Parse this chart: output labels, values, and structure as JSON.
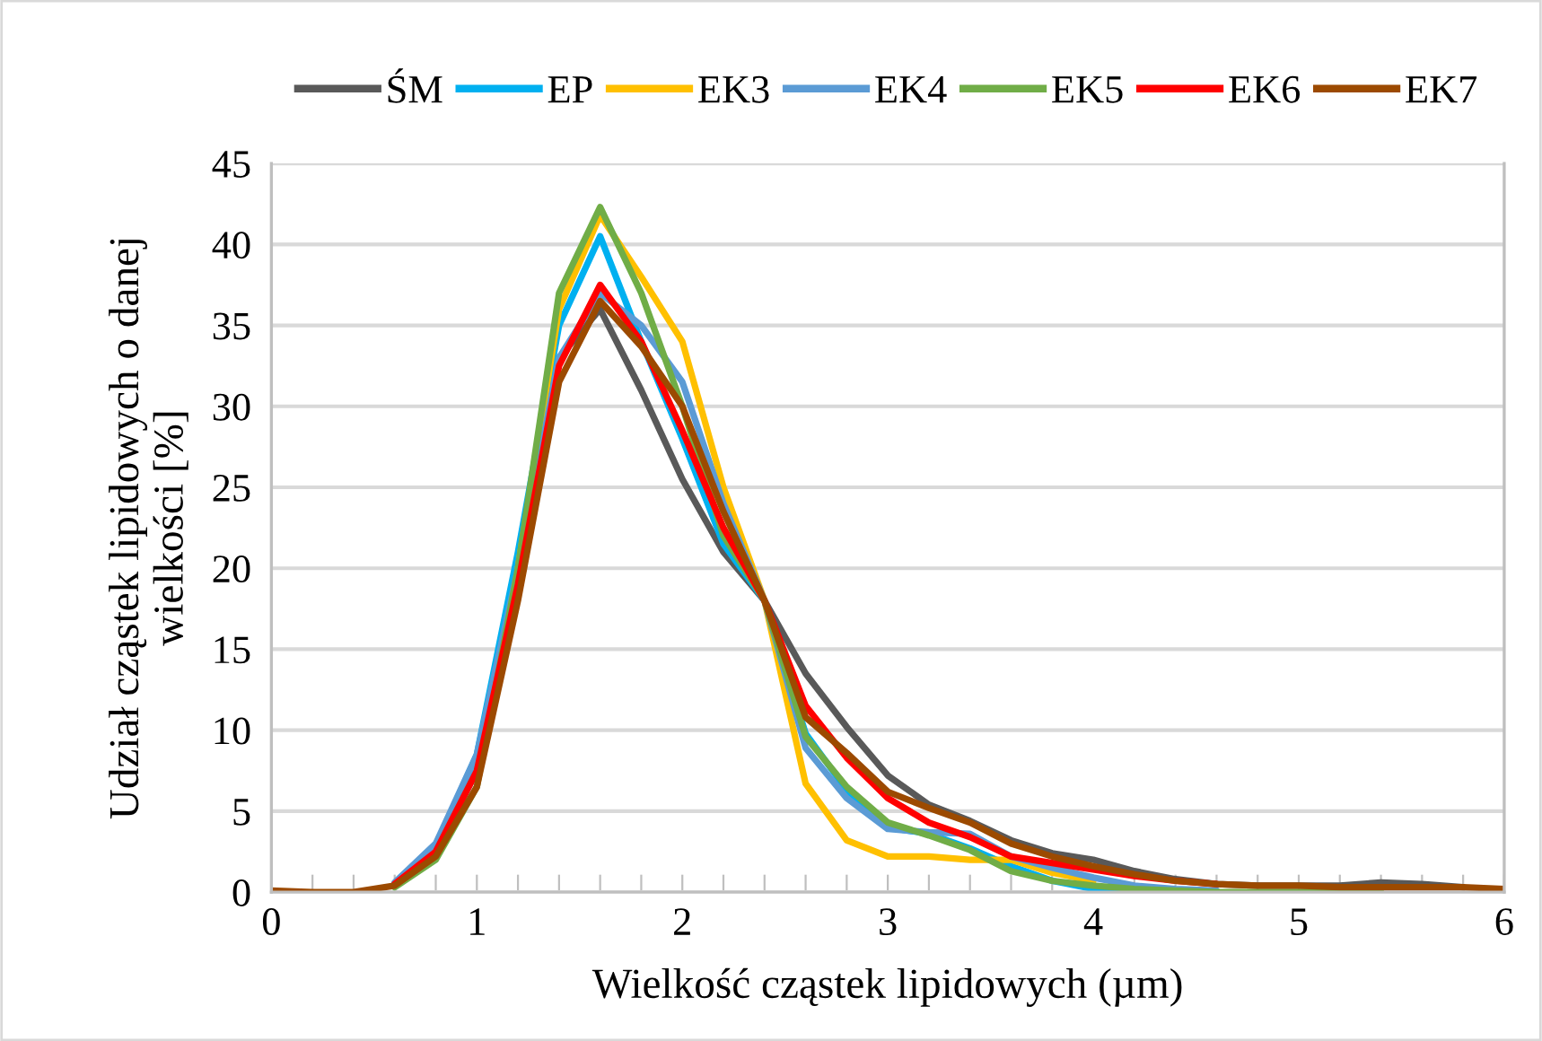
{
  "chart_data": {
    "type": "line",
    "xlabel": "Wielkość cząstek lipidowych (µm)",
    "ylabel": "Udział cząstek lipidowych o danej\nwielkości [%]",
    "x": [
      0,
      0.2,
      0.4,
      0.6,
      0.8,
      1.0,
      1.2,
      1.4,
      1.6,
      1.8,
      2.0,
      2.2,
      2.4,
      2.6,
      2.8,
      3.0,
      3.2,
      3.4,
      3.6,
      3.8,
      4.0,
      4.2,
      4.4,
      4.6,
      4.8,
      5.0,
      5.2,
      5.4,
      5.6,
      5.8,
      6.0
    ],
    "series": [
      {
        "name": "ŚM",
        "color": "#595959",
        "values": [
          null,
          null,
          null,
          0.5,
          2.5,
          7.5,
          20,
          33,
          36,
          31,
          25.5,
          21,
          18,
          13.5,
          10.2,
          7.2,
          5.4,
          4.4,
          3.2,
          2.4,
          2.0,
          1.3,
          0.8,
          0.5,
          0.4,
          0.4,
          0.4,
          0.6,
          0.5,
          0.3,
          null
        ]
      },
      {
        "name": "EP",
        "color": "#00b0f0",
        "values": [
          null,
          null,
          null,
          null,
          2.8,
          8.5,
          21,
          35,
          40.5,
          34,
          28,
          21.5,
          18,
          9.8,
          6.3,
          4,
          3.6,
          2.7,
          1.6,
          0.7,
          0.2,
          0.1,
          null,
          null,
          null,
          null,
          null,
          null,
          null,
          null,
          null
        ]
      },
      {
        "name": "EK3",
        "color": "#ffc000",
        "values": [
          null,
          null,
          null,
          null,
          null,
          null,
          20,
          36,
          41.8,
          38,
          34,
          25,
          18,
          6.7,
          3.2,
          2.2,
          2.2,
          2.0,
          2.0,
          1.2,
          0.7,
          null,
          null,
          null,
          null,
          null,
          null,
          null,
          null,
          null,
          null
        ]
      },
      {
        "name": "EK4",
        "color": "#5b9bd5",
        "values": [
          null,
          null,
          null,
          0.6,
          3,
          8.5,
          20,
          33,
          37,
          35,
          31.5,
          24,
          18,
          8.9,
          5.8,
          3.9,
          3.7,
          3.6,
          2.2,
          1.5,
          0.9,
          0.4,
          0.2,
          0.1,
          null,
          null,
          null,
          null,
          null,
          null,
          null
        ]
      },
      {
        "name": "EK5",
        "color": "#70ad47",
        "values": [
          null,
          null,
          null,
          0.3,
          2,
          6.5,
          20,
          37,
          42.3,
          37,
          30,
          22,
          18,
          9.6,
          6.5,
          4.3,
          3.5,
          2.6,
          1.3,
          0.7,
          0.4,
          0.2,
          0.1,
          0,
          0,
          0,
          0,
          0,
          null,
          null,
          null
        ]
      },
      {
        "name": "EK6",
        "color": "#ff0000",
        "values": [
          null,
          null,
          null,
          0.5,
          2.5,
          7.5,
          19,
          32.5,
          37.5,
          34,
          28.5,
          22.5,
          18,
          11.5,
          8.3,
          5.8,
          4.3,
          3.4,
          2.2,
          1.8,
          1.4,
          1.0,
          0.7,
          0.5,
          null,
          null,
          null,
          null,
          null,
          null,
          null
        ]
      },
      {
        "name": "EK7",
        "color": "#9c4a00",
        "values": [
          0.1,
          0,
          0,
          0.4,
          2.2,
          6.5,
          18,
          31.5,
          36.5,
          33.7,
          30,
          23.5,
          18,
          10.8,
          8.6,
          6.2,
          5.2,
          4.3,
          3.0,
          2.2,
          1.6,
          1.1,
          0.7,
          0.5,
          0.4,
          0.4,
          0.3,
          0.3,
          0.3,
          0.3,
          0.2
        ]
      }
    ],
    "xlim": [
      0,
      6
    ],
    "xticks": [
      0,
      {
        "value": 0.2,
        "label": null
      },
      {
        "value": 0.4,
        "label": null
      },
      {
        "value": 0.6,
        "label": null
      },
      {
        "value": 0.8,
        "label": null
      },
      1,
      {
        "value": 1.2,
        "label": null
      },
      {
        "value": 1.4,
        "label": null
      },
      {
        "value": 1.6,
        "label": null
      },
      {
        "value": 1.8,
        "label": null
      },
      2,
      {
        "value": 2.2,
        "label": null
      },
      {
        "value": 2.4,
        "label": null
      },
      {
        "value": 2.6,
        "label": null
      },
      {
        "value": 2.8,
        "label": null
      },
      3,
      {
        "value": 3.2,
        "label": null
      },
      {
        "value": 3.4,
        "label": null
      },
      {
        "value": 3.6,
        "label": null
      },
      {
        "value": 3.8,
        "label": null
      },
      4,
      {
        "value": 4.2,
        "label": null
      },
      {
        "value": 4.4,
        "label": null
      },
      {
        "value": 4.6,
        "label": null
      },
      {
        "value": 4.8,
        "label": null
      },
      5,
      {
        "value": 5.2,
        "label": null
      },
      {
        "value": 5.4,
        "label": null
      },
      {
        "value": 5.6,
        "label": null
      },
      {
        "value": 5.8,
        "label": null
      },
      6
    ],
    "ylim": [
      0,
      45
    ],
    "yticks": [
      0,
      5,
      10,
      15,
      20,
      25,
      30,
      35,
      40,
      45
    ],
    "grid": "y",
    "legend": "top",
    "marker": "none",
    "line_style": "solid"
  }
}
